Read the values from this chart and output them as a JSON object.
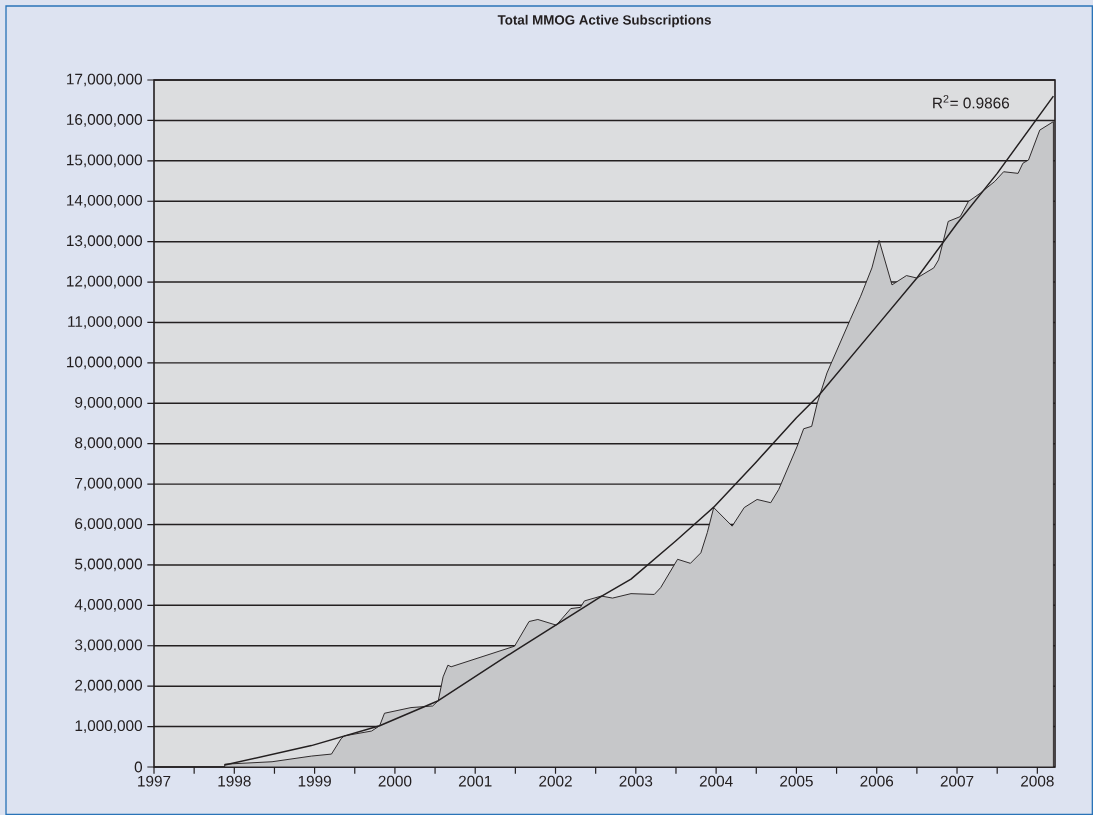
{
  "chart_data": {
    "type": "area",
    "title": "**Total MMOG Active Subscriptions**",
    "annotations": [
      "R$^{2}$= 0.9866"
    ],
    "xlim": [
      1997,
      2008.22
    ],
    "xticks": [
      1997,
      {
        "value": 1997.5,
        "label": null
      },
      1998,
      {
        "value": 1998.5,
        "label": null
      },
      1999,
      {
        "value": 1999.5,
        "label": null
      },
      2000,
      {
        "value": 2000.5,
        "label": null
      },
      2001,
      {
        "value": 2001.5,
        "label": null
      },
      2002,
      {
        "value": 2002.5,
        "label": null
      },
      2003,
      {
        "value": 2003.5,
        "label": null
      },
      2004,
      {
        "value": 2004.5,
        "label": null
      },
      2005,
      {
        "value": 2005.5,
        "label": null
      },
      2006,
      {
        "value": 2006.5,
        "label": null
      },
      2007,
      {
        "value": 2007.5,
        "label": null
      },
      2008
    ],
    "ylim": [
      0,
      17000000
    ],
    "yticks": [
      0,
      {
        "value": 1000000,
        "label": "1,000,000"
      },
      {
        "value": 2000000,
        "label": "2,000,000"
      },
      {
        "value": 3000000,
        "label": "3,000,000"
      },
      {
        "value": 4000000,
        "label": "4,000,000"
      },
      {
        "value": 5000000,
        "label": "5,000,000"
      },
      {
        "value": 6000000,
        "label": "6,000,000"
      },
      {
        "value": 7000000,
        "label": "7,000,000"
      },
      {
        "value": 8000000,
        "label": "8,000,000"
      },
      {
        "value": 9000000,
        "label": "9,000,000"
      },
      {
        "value": 10000000,
        "label": "10,000,000"
      },
      {
        "value": 11000000,
        "label": "11,000,000"
      },
      {
        "value": 12000000,
        "label": "12,000,000"
      },
      {
        "value": 13000000,
        "label": "13,000,000"
      },
      {
        "value": 14000000,
        "label": "14,000,000"
      },
      {
        "value": 15000000,
        "label": "15,000,000"
      },
      {
        "value": 16000000,
        "label": "16,000,000"
      },
      {
        "value": 17000000,
        "label": "17,000,000"
      }
    ],
    "grid": "y",
    "marker": "none",
    "line_style": "solid",
    "series": [
      {
        "color": "#c6c7c9",
        "x": [
          1997.88,
          1998.47,
          1998.96,
          1999.21,
          1999.33,
          1999.37,
          1999.71,
          1999.81,
          1999.87,
          2000.2,
          2000.47,
          2000.54,
          2000.6,
          2000.66,
          2000.7,
          2001.49,
          2001.67,
          2001.78,
          2002.01,
          2002.19,
          2002.31,
          2002.36,
          2002.57,
          2002.71,
          2002.94,
          2003.23,
          2003.31,
          2003.52,
          2003.68,
          2003.81,
          2003.89,
          2003.97,
          2004.2,
          2004.35,
          2004.51,
          2004.68,
          2004.78,
          2005.01,
          2005.09,
          2005.19,
          2005.26,
          2005.38,
          2005.67,
          2005.8,
          2005.94,
          2006.03,
          2006.19,
          2006.37,
          2006.5,
          2006.71,
          2006.77,
          2006.89,
          2007.04,
          2007.14,
          2007.29,
          2007.47,
          2007.58,
          2007.76,
          2007.82,
          2007.89,
          2008.03,
          2008.2
        ],
        "values": [
          70000,
          130000,
          270000,
          320000,
          700000,
          770000,
          890000,
          1020000,
          1330000,
          1470000,
          1510000,
          1640000,
          2230000,
          2520000,
          2480000,
          2990000,
          3600000,
          3650000,
          3510000,
          3920000,
          3950000,
          4110000,
          4230000,
          4180000,
          4290000,
          4270000,
          4440000,
          5140000,
          5040000,
          5300000,
          5800000,
          6420000,
          5960000,
          6420000,
          6620000,
          6540000,
          6870000,
          7940000,
          8370000,
          8430000,
          9010000,
          9750000,
          11070000,
          11650000,
          12350000,
          13030000,
          11930000,
          12160000,
          12100000,
          12350000,
          12550000,
          13500000,
          13620000,
          13990000,
          14200000,
          14490000,
          14730000,
          14690000,
          14940000,
          15020000,
          15760000,
          15970000
        ]
      },
      {
        "type": "line",
        "color": "#231f20",
        "x": [
          1997.88,
          1998.96,
          1999.81,
          2000.54,
          2001.49,
          2002.57,
          2002.94,
          2003.5,
          2003.97,
          2004.5,
          2005,
          2005.28,
          2006,
          2006.5,
          2007,
          2007.5,
          2008.2
        ],
        "values": [
          50000,
          530000,
          1020000,
          1640000,
          2870000,
          4220000,
          4650000,
          5600000,
          6430000,
          7550000,
          8640000,
          9200000,
          10910000,
          12100000,
          13450000,
          14690000,
          16600000
        ]
      }
    ]
  }
}
